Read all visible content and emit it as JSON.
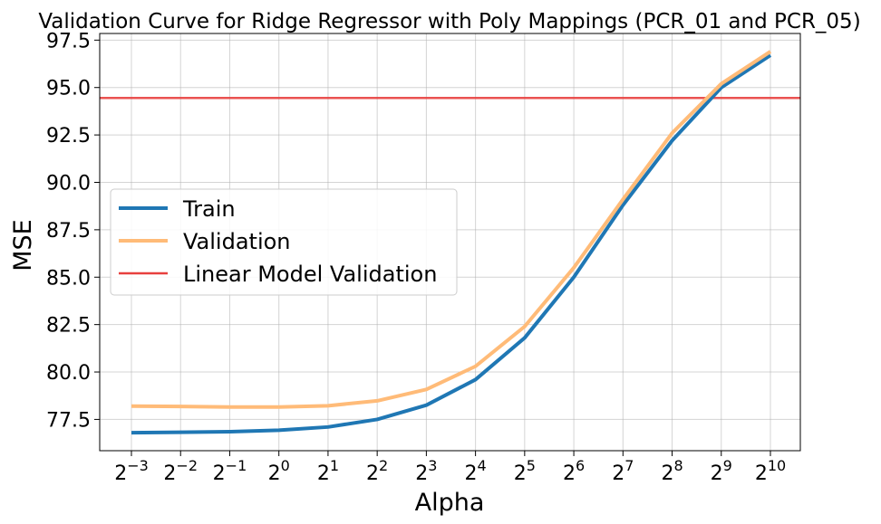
{
  "chart_data": {
    "type": "line",
    "title": "Validation Curve for Ridge Regressor with Poly Mappings (PCR_01 and PCR_05)",
    "xlabel": "Alpha",
    "ylabel": "MSE",
    "x_scale": "log2",
    "x": [
      0.125,
      0.25,
      0.5,
      1,
      2,
      4,
      8,
      16,
      32,
      64,
      128,
      256,
      512,
      1024
    ],
    "x_tick_labels": [
      {
        "base": "2",
        "exp": "−3"
      },
      {
        "base": "2",
        "exp": "−2"
      },
      {
        "base": "2",
        "exp": "−1"
      },
      {
        "base": "2",
        "exp": "0"
      },
      {
        "base": "2",
        "exp": "1"
      },
      {
        "base": "2",
        "exp": "2"
      },
      {
        "base": "2",
        "exp": "3"
      },
      {
        "base": "2",
        "exp": "4"
      },
      {
        "base": "2",
        "exp": "5"
      },
      {
        "base": "2",
        "exp": "6"
      },
      {
        "base": "2",
        "exp": "7"
      },
      {
        "base": "2",
        "exp": "8"
      },
      {
        "base": "2",
        "exp": "9"
      },
      {
        "base": "2",
        "exp": "10"
      }
    ],
    "y_ticks": [
      77.5,
      80.0,
      82.5,
      85.0,
      87.5,
      90.0,
      92.5,
      95.0,
      97.5
    ],
    "y_tick_labels": [
      "77.5",
      "80.0",
      "82.5",
      "85.0",
      "87.5",
      "90.0",
      "92.5",
      "95.0",
      "97.5"
    ],
    "ylim": [
      75.85,
      97.85
    ],
    "grid": true,
    "legend_position": "center-left",
    "series": [
      {
        "name": "Train",
        "color": "#1f77b4",
        "values": [
          76.8,
          76.82,
          76.85,
          76.93,
          77.1,
          77.5,
          78.25,
          79.6,
          81.8,
          85.0,
          88.8,
          92.2,
          95.0,
          96.7
        ]
      },
      {
        "name": "Validation",
        "color": "#ffbb78",
        "values": [
          78.2,
          78.18,
          78.15,
          78.15,
          78.22,
          78.48,
          79.08,
          80.3,
          82.4,
          85.5,
          89.1,
          92.6,
          95.2,
          96.9
        ]
      }
    ],
    "reference_lines": [
      {
        "name": "Linear Model Validation",
        "color": "#e8403e",
        "y": 94.45
      }
    ]
  }
}
